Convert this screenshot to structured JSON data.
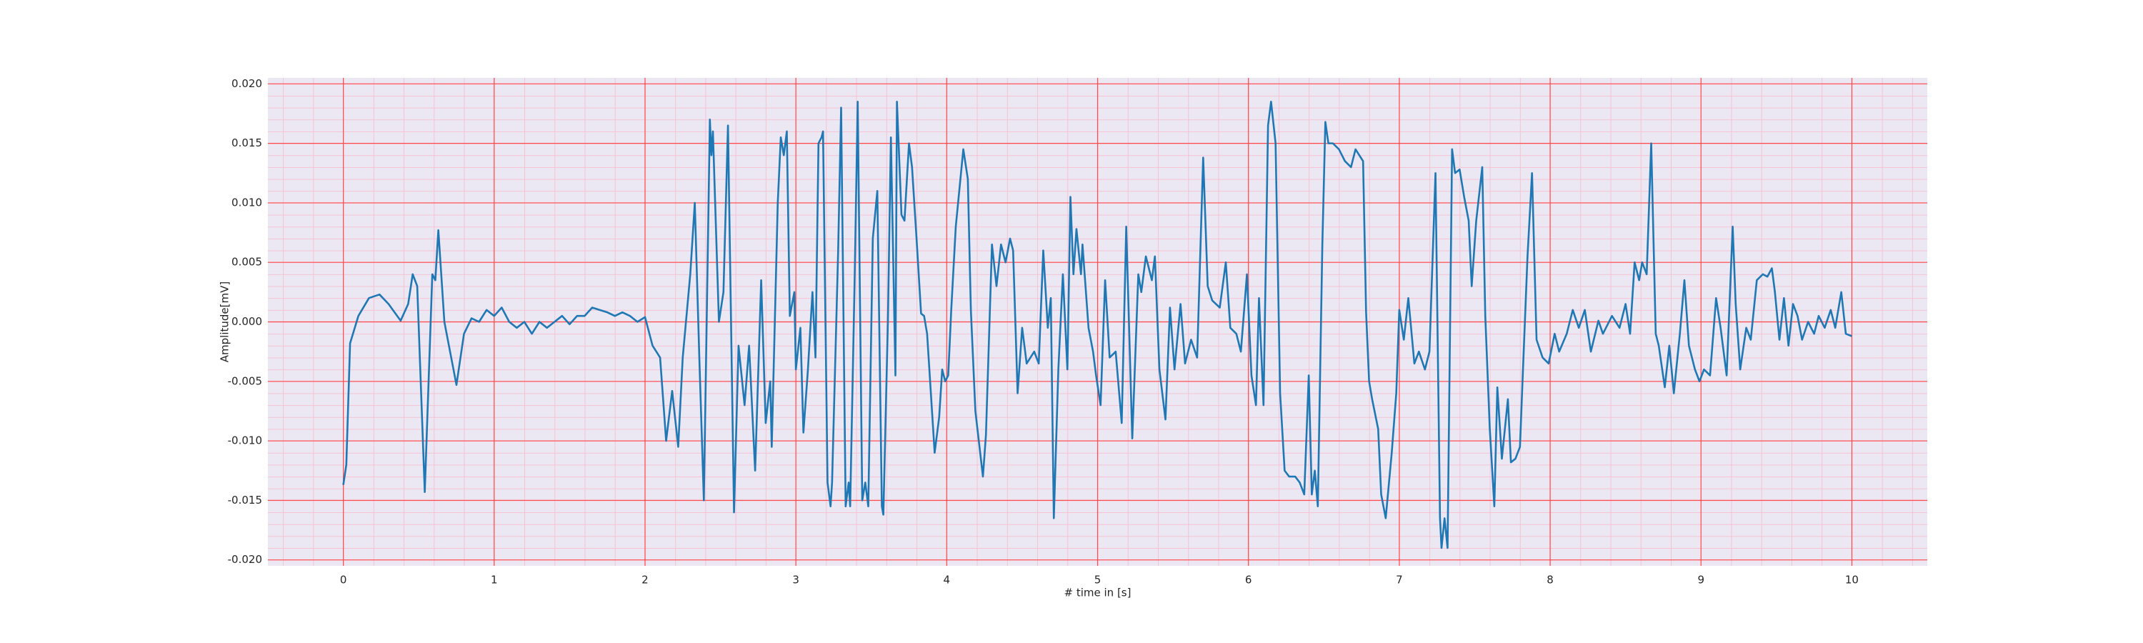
{
  "chart_data": {
    "type": "line",
    "xlabel": "# time in [s]",
    "ylabel": "Amplitude[mV]",
    "color": "#1f77b4",
    "grid": true,
    "minor_grid": true,
    "xlim": [
      -0.5,
      10.5
    ],
    "ylim": [
      -0.0205,
      0.0205
    ],
    "xticks": [
      0,
      1,
      2,
      3,
      4,
      5,
      6,
      7,
      8,
      9,
      10
    ],
    "yticks": [
      {
        "value": -0.02,
        "label": "-0.020"
      },
      {
        "value": -0.015,
        "label": "-0.015"
      },
      {
        "value": -0.01,
        "label": "-0.010"
      },
      -0.005,
      {
        "value": 0,
        "label": "0.000"
      },
      0.005,
      {
        "value": 0.01,
        "label": "0.010"
      },
      {
        "value": 0.015,
        "label": "0.015"
      },
      {
        "value": 0.02,
        "label": "0.020"
      }
    ],
    "x": [
      0,
      0.02,
      0.045,
      0.1,
      0.17,
      0.24,
      0.3,
      0.38,
      0.43,
      0.46,
      0.49,
      0.54,
      0.59,
      0.61,
      0.63,
      0.67,
      0.75,
      0.8,
      0.85,
      0.9,
      0.95,
      1.0,
      1.05,
      1.1,
      1.15,
      1.2,
      1.25,
      1.3,
      1.35,
      1.4,
      1.45,
      1.5,
      1.55,
      1.6,
      1.65,
      1.7,
      1.75,
      1.8,
      1.85,
      1.9,
      1.95,
      2.0,
      2.05,
      2.1,
      2.14,
      2.18,
      2.22,
      2.25,
      2.3,
      2.33,
      2.36,
      2.39,
      2.43,
      2.44,
      2.45,
      2.49,
      2.52,
      2.55,
      2.59,
      2.62,
      2.66,
      2.69,
      2.73,
      2.77,
      2.8,
      2.83,
      2.84,
      2.88,
      2.9,
      2.92,
      2.94,
      2.96,
      2.99,
      3.0,
      3.03,
      3.05,
      3.08,
      3.11,
      3.13,
      3.15,
      3.17,
      3.18,
      3.21,
      3.23,
      3.24,
      3.28,
      3.3,
      3.33,
      3.35,
      3.36,
      3.39,
      3.41,
      3.44,
      3.46,
      3.48,
      3.51,
      3.54,
      3.57,
      3.58,
      3.61,
      3.63,
      3.66,
      3.67,
      3.7,
      3.72,
      3.75,
      3.77,
      3.8,
      3.83,
      3.85,
      3.87,
      3.92,
      3.95,
      3.97,
      3.99,
      4.01,
      4.03,
      4.06,
      4.11,
      4.14,
      4.16,
      4.19,
      4.24,
      4.26,
      4.3,
      4.33,
      4.36,
      4.39,
      4.42,
      4.44,
      4.47,
      4.5,
      4.53,
      4.58,
      4.61,
      4.64,
      4.67,
      4.69,
      4.71,
      4.74,
      4.77,
      4.8,
      4.82,
      4.84,
      4.86,
      4.89,
      4.9,
      4.94,
      4.97,
      4.99,
      5.02,
      5.05,
      5.08,
      5.12,
      5.16,
      5.19,
      5.23,
      5.27,
      5.29,
      5.32,
      5.36,
      5.38,
      5.41,
      5.45,
      5.48,
      5.51,
      5.55,
      5.58,
      5.62,
      5.66,
      5.7,
      5.73,
      5.76,
      5.81,
      5.85,
      5.88,
      5.92,
      5.95,
      5.99,
      6.02,
      6.05,
      6.07,
      6.1,
      6.13,
      6.15,
      6.18,
      6.21,
      6.24,
      6.27,
      6.31,
      6.34,
      6.37,
      6.4,
      6.42,
      6.44,
      6.46,
      6.49,
      6.51,
      6.53,
      6.56,
      6.6,
      6.64,
      6.68,
      6.71,
      6.76,
      6.78,
      6.8,
      6.82,
      6.86,
      6.88,
      6.91,
      6.95,
      6.98,
      7.0,
      7.03,
      7.06,
      7.1,
      7.13,
      7.17,
      7.2,
      7.24,
      7.27,
      7.28,
      7.3,
      7.32,
      7.35,
      7.37,
      7.4,
      7.43,
      7.46,
      7.48,
      7.51,
      7.55,
      7.57,
      7.6,
      7.63,
      7.65,
      7.68,
      7.72,
      7.74,
      7.77,
      7.8,
      7.82,
      7.85,
      7.88,
      7.91,
      7.95,
      7.99,
      8.03,
      8.06,
      8.11,
      8.15,
      8.19,
      8.23,
      8.27,
      8.32,
      8.35,
      8.41,
      8.46,
      8.5,
      8.53,
      8.56,
      8.59,
      8.61,
      8.64,
      8.67,
      8.7,
      8.72,
      8.76,
      8.79,
      8.82,
      8.86,
      8.89,
      8.92,
      8.96,
      8.99,
      9.02,
      9.06,
      9.1,
      9.13,
      9.17,
      9.21,
      9.23,
      9.26,
      9.3,
      9.33,
      9.37,
      9.41,
      9.44,
      9.47,
      9.49,
      9.52,
      9.55,
      9.58,
      9.61,
      9.64,
      9.67,
      9.71,
      9.75,
      9.78,
      9.82,
      9.86,
      9.89,
      9.93,
      9.96,
      10.0
    ],
    "values": [
      -0.0137,
      -0.012,
      -0.0018,
      0.0005,
      0.002,
      0.0023,
      0.0015,
      0.0001,
      0.0015,
      0.004,
      0.003,
      -0.0143,
      0.004,
      0.0035,
      0.0077,
      0.0,
      -0.0053,
      -0.001,
      0.0003,
      0.0,
      0.001,
      0.0005,
      0.0012,
      0.0,
      -0.0005,
      0.0,
      -0.001,
      0.0,
      -0.0005,
      0.0,
      0.0005,
      -0.0002,
      0.0005,
      0.0005,
      0.0012,
      0.001,
      0.0008,
      0.0005,
      0.0008,
      0.0005,
      0.0,
      0.0004,
      -0.002,
      -0.003,
      -0.01,
      -0.0058,
      -0.0105,
      -0.003,
      0.004,
      0.01,
      -0.003,
      -0.015,
      0.017,
      0.014,
      0.016,
      0.0,
      0.0025,
      0.0165,
      -0.016,
      -0.002,
      -0.007,
      -0.002,
      -0.0125,
      0.0035,
      -0.0085,
      -0.005,
      -0.0105,
      0.01,
      0.0155,
      0.014,
      0.016,
      0.0005,
      0.0025,
      -0.004,
      -0.0005,
      -0.0093,
      -0.004,
      0.0025,
      -0.003,
      0.015,
      0.0155,
      0.016,
      -0.0135,
      -0.0155,
      -0.0135,
      0.0058,
      0.018,
      -0.0155,
      -0.0135,
      -0.0155,
      0.0038,
      0.0185,
      -0.015,
      -0.0135,
      -0.0155,
      0.007,
      0.011,
      -0.0155,
      -0.0162,
      0.0,
      0.0155,
      -0.0045,
      0.0185,
      0.009,
      0.0085,
      0.015,
      0.013,
      0.007,
      0.0007,
      0.0005,
      -0.001,
      -0.011,
      -0.008,
      -0.004,
      -0.005,
      -0.0045,
      0.001,
      0.008,
      0.0145,
      0.012,
      0.001,
      -0.0075,
      -0.013,
      -0.0095,
      0.0065,
      0.003,
      0.0065,
      0.005,
      0.007,
      0.006,
      -0.006,
      -0.0005,
      -0.0035,
      -0.0025,
      -0.0035,
      0.006,
      -0.0005,
      0.002,
      -0.0165,
      -0.004,
      0.004,
      -0.004,
      0.0105,
      0.004,
      0.0078,
      0.004,
      0.0065,
      -0.0005,
      -0.0025,
      -0.0045,
      -0.007,
      0.0035,
      -0.003,
      -0.0025,
      -0.0085,
      0.008,
      -0.0098,
      0.004,
      0.0025,
      0.0055,
      0.0035,
      0.0055,
      -0.004,
      -0.0082,
      0.0012,
      -0.004,
      0.0015,
      -0.0035,
      -0.0015,
      -0.003,
      0.0138,
      0.003,
      0.0018,
      0.0012,
      0.005,
      -0.0005,
      -0.001,
      -0.0025,
      0.004,
      -0.0045,
      -0.007,
      0.002,
      -0.007,
      0.0165,
      0.0185,
      0.015,
      -0.006,
      -0.0125,
      -0.013,
      -0.013,
      -0.0135,
      -0.0145,
      -0.0045,
      -0.0145,
      -0.0125,
      -0.0155,
      0.0065,
      0.0168,
      0.015,
      0.015,
      0.0145,
      0.0135,
      0.013,
      0.0145,
      0.0135,
      0.0008,
      -0.005,
      -0.0065,
      -0.009,
      -0.0145,
      -0.0165,
      -0.011,
      -0.006,
      0.001,
      -0.0015,
      0.002,
      -0.0035,
      -0.0025,
      -0.004,
      -0.0025,
      0.0125,
      -0.0165,
      -0.019,
      -0.0165,
      -0.019,
      0.0145,
      0.0125,
      0.0128,
      0.0105,
      0.0085,
      0.003,
      0.0085,
      0.013,
      0.0005,
      -0.009,
      -0.0155,
      -0.0055,
      -0.0115,
      -0.0065,
      -0.0118,
      -0.0115,
      -0.0105,
      -0.004,
      0.0055,
      0.0125,
      -0.0015,
      -0.003,
      -0.0035,
      -0.001,
      -0.0025,
      -0.001,
      0.001,
      -0.0005,
      0.001,
      -0.0025,
      0.0001,
      -0.001,
      0.0005,
      -0.0005,
      0.0015,
      -0.001,
      0.005,
      0.0035,
      0.005,
      0.004,
      0.015,
      -0.001,
      -0.002,
      -0.0055,
      -0.002,
      -0.006,
      -0.001,
      0.0035,
      -0.002,
      -0.004,
      -0.005,
      -0.004,
      -0.0045,
      0.002,
      -0.0005,
      -0.0045,
      0.008,
      0.0015,
      -0.004,
      -0.0005,
      -0.0015,
      0.0035,
      0.004,
      0.0038,
      0.0045,
      0.0025,
      -0.0015,
      0.002,
      -0.002,
      0.0015,
      0.0005,
      -0.0015,
      0.0,
      -0.001,
      0.0005,
      -0.0005,
      0.001,
      -0.0005,
      0.0025,
      -0.001,
      -0.0012
    ]
  }
}
